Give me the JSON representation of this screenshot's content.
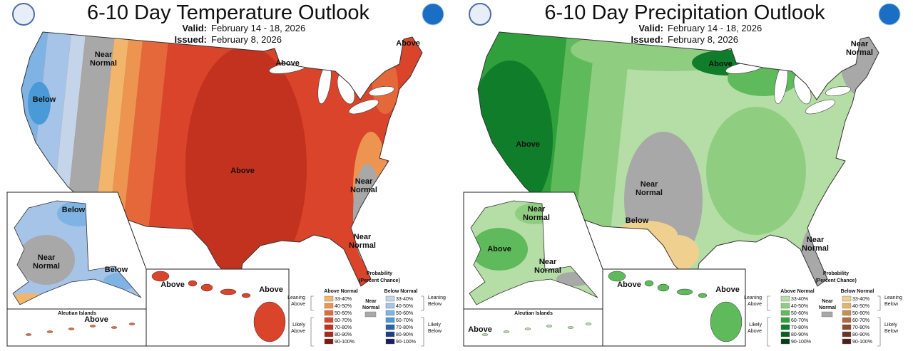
{
  "maps": [
    {
      "title": "6-10 Day Temperature Outlook",
      "valid_label": "Valid:",
      "valid": "February 14 - 18, 2026",
      "issued_label": "Issued:",
      "issued": "February 8, 2026",
      "region_labels": [
        {
          "lines": [
            "Near",
            "Normal"
          ]
        },
        {
          "lines": [
            "Above"
          ]
        },
        {
          "lines": [
            "Above"
          ]
        },
        {
          "lines": [
            "Below"
          ]
        },
        {
          "lines": [
            "Above"
          ]
        },
        {
          "lines": [
            "Near",
            "Normal"
          ]
        },
        {
          "lines": [
            "Near",
            "Normal"
          ]
        }
      ],
      "alaska_labels": [
        {
          "lines": [
            "Below"
          ]
        },
        {
          "lines": [
            "Near",
            "Normal"
          ]
        },
        {
          "lines": [
            "Below"
          ]
        }
      ],
      "aleutian_title": "Aleutian Islands",
      "aleutian_labels": [
        {
          "lines": [
            "Above"
          ]
        }
      ],
      "hawaii_labels": [
        {
          "lines": [
            "Above"
          ]
        },
        {
          "lines": [
            "Above"
          ]
        }
      ],
      "legend": {
        "title": [
          "Probability",
          "(Percent Chance)"
        ],
        "above_title": "Above Normal",
        "below_title": "Below Normal",
        "near_title": [
          "Near",
          "Normal"
        ],
        "ranges": [
          "33-40%",
          "40-50%",
          "50-60%",
          "60-70%",
          "70-80%",
          "80-90%",
          "90-100%"
        ],
        "above_colors": [
          "#f2b56c",
          "#ec9450",
          "#e5683a",
          "#d9442a",
          "#c3321e",
          "#a62818",
          "#7a1a0e"
        ],
        "below_colors": [
          "#c4d5ea",
          "#a5c4e8",
          "#7fb3e3",
          "#4a9ad8",
          "#2463b0",
          "#1c3f8a",
          "#1a1d5a"
        ],
        "near_color": "#a8a8a8",
        "leaning_above": [
          "Leaning",
          "Above"
        ],
        "likely_above": [
          "Likely",
          "Above"
        ],
        "leaning_below": [
          "Leaning",
          "Below"
        ],
        "likely_below": [
          "Likely",
          "Below"
        ]
      }
    },
    {
      "title": "6-10 Day Precipitation Outlook",
      "valid_label": "Valid:",
      "valid": "February 14 - 18, 2026",
      "issued_label": "Issued:",
      "issued": "February 8, 2026",
      "region_labels": [
        {
          "lines": [
            "Near",
            "Normal"
          ]
        },
        {
          "lines": [
            "Above"
          ]
        },
        {
          "lines": [
            "Above"
          ]
        },
        {
          "lines": [
            "Near",
            "Normal"
          ]
        },
        {
          "lines": [
            "Below"
          ]
        },
        {
          "lines": [
            "Near",
            "Normal"
          ]
        }
      ],
      "alaska_labels": [
        {
          "lines": [
            "Near",
            "Normal"
          ]
        },
        {
          "lines": [
            "Above"
          ]
        },
        {
          "lines": [
            "Near",
            "Normal"
          ]
        }
      ],
      "aleutian_title": "Aleutian Islands",
      "aleutian_labels": [
        {
          "lines": [
            "Above"
          ]
        }
      ],
      "hawaii_labels": [
        {
          "lines": [
            "Above"
          ]
        },
        {
          "lines": [
            "Above"
          ]
        }
      ],
      "legend": {
        "title": [
          "Probability",
          "(Percent Chance)"
        ],
        "above_title": "Above Normal",
        "below_title": "Below Normal",
        "near_title": [
          "Near",
          "Normal"
        ],
        "ranges": [
          "33-40%",
          "40-50%",
          "50-60%",
          "60-70%",
          "70-80%",
          "80-90%",
          "90-100%"
        ],
        "above_colors": [
          "#b4dea6",
          "#8fce80",
          "#5fba5b",
          "#2fa03b",
          "#0f7d2a",
          "#0b5e22",
          "#073d15"
        ],
        "below_colors": [
          "#f0d08f",
          "#e3b56b",
          "#c98d4e",
          "#b06a3e",
          "#8f4a2e",
          "#6f3222",
          "#4f2018"
        ],
        "near_color": "#a8a8a8",
        "leaning_above": [
          "Leaning",
          "Above"
        ],
        "likely_above": [
          "Likely",
          "Above"
        ],
        "leaning_below": [
          "Leaning",
          "Below"
        ],
        "likely_below": [
          "Likely",
          "Below"
        ]
      }
    }
  ]
}
